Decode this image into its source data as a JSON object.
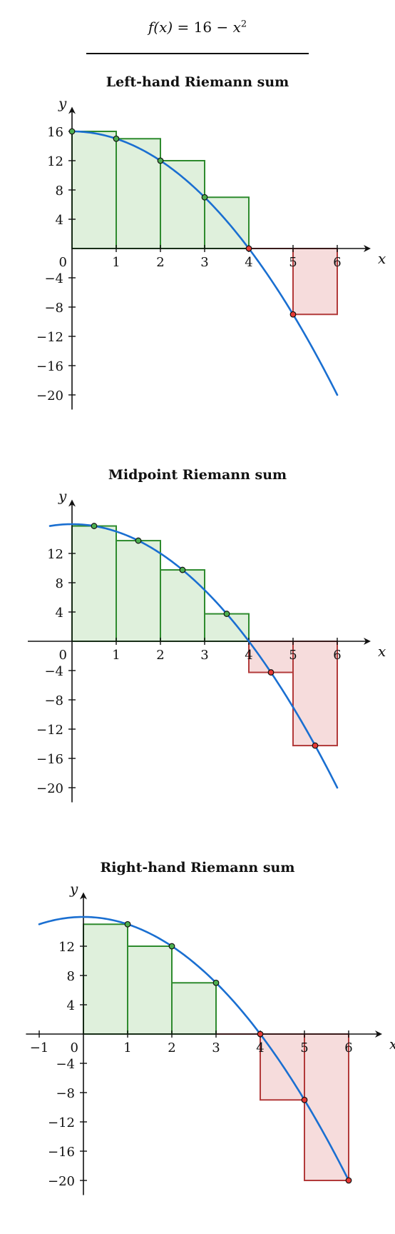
{
  "formula": {
    "lhs": "f(x)",
    "rhs_constant": "16",
    "rhs_var": "x",
    "rhs_exp": "2"
  },
  "colors": {
    "curve": "#1a6fd1",
    "curve_overlap": "#5b9bd5",
    "pos_fill": "#dff0dc",
    "pos_stroke": "#2e8b2e",
    "neg_fill": "#f6dcdc",
    "neg_stroke": "#b23a3a",
    "pos_point": "#4caf50",
    "neg_point": "#e53935",
    "axis": "#111111"
  },
  "chart_data": [
    {
      "type": "bar",
      "title": "Left-hand Riemann sum",
      "xlabel": "x",
      "ylabel": "y",
      "xlim": [
        0,
        6.5
      ],
      "ylim": [
        -22,
        18
      ],
      "x_ticks": [
        {
          "value": 0,
          "label": "0"
        },
        {
          "value": 1,
          "label": "1"
        },
        {
          "value": 2,
          "label": "2"
        },
        {
          "value": 3,
          "label": "3"
        },
        {
          "value": 4,
          "label": "4"
        },
        {
          "value": 5,
          "label": "5"
        },
        {
          "value": 6,
          "label": "6"
        }
      ],
      "y_ticks": [
        {
          "value": 16,
          "label": "16"
        },
        {
          "value": 12,
          "label": "12"
        },
        {
          "value": 8,
          "label": "8"
        },
        {
          "value": 4,
          "label": "4"
        },
        {
          "value": -4,
          "label": "−4"
        },
        {
          "value": -8,
          "label": "−8"
        },
        {
          "value": -12,
          "label": "−12"
        },
        {
          "value": -16,
          "label": "−16"
        },
        {
          "value": -20,
          "label": "−20"
        }
      ],
      "curve_x_range": [
        0,
        6
      ],
      "rectangles": [
        {
          "x0": 0,
          "x1": 1,
          "height": 16
        },
        {
          "x0": 1,
          "x1": 2,
          "height": 15
        },
        {
          "x0": 2,
          "x1": 3,
          "height": 12
        },
        {
          "x0": 3,
          "x1": 4,
          "height": 7
        },
        {
          "x0": 4,
          "x1": 5,
          "height": 0
        },
        {
          "x0": 5,
          "x1": 6,
          "height": -9
        }
      ],
      "sample_points": [
        {
          "x": 0,
          "y": 16
        },
        {
          "x": 1,
          "y": 15
        },
        {
          "x": 2,
          "y": 12
        },
        {
          "x": 3,
          "y": 7
        },
        {
          "x": 4,
          "y": 0
        },
        {
          "x": 5,
          "y": -9
        }
      ]
    },
    {
      "type": "bar",
      "title": "Midpoint Riemann sum",
      "xlabel": "x",
      "ylabel": "y",
      "xlim": [
        -1,
        6.5
      ],
      "ylim": [
        -22,
        18
      ],
      "x_ticks": [
        {
          "value": 0,
          "label": "0"
        },
        {
          "value": 1,
          "label": "1"
        },
        {
          "value": 2,
          "label": "2"
        },
        {
          "value": 3,
          "label": "3"
        },
        {
          "value": 4,
          "label": "4"
        },
        {
          "value": 5,
          "label": "5"
        },
        {
          "value": 6,
          "label": "6"
        }
      ],
      "y_ticks": [
        {
          "value": 12,
          "label": "12"
        },
        {
          "value": 8,
          "label": "8"
        },
        {
          "value": 4,
          "label": "4"
        },
        {
          "value": -4,
          "label": "−4"
        },
        {
          "value": -8,
          "label": "−8"
        },
        {
          "value": -12,
          "label": "−12"
        },
        {
          "value": -16,
          "label": "−16"
        },
        {
          "value": -20,
          "label": "−20"
        }
      ],
      "curve_x_range": [
        -0.5,
        6
      ],
      "rectangles": [
        {
          "x0": 0,
          "x1": 1,
          "height": 15.75
        },
        {
          "x0": 1,
          "x1": 2,
          "height": 13.75
        },
        {
          "x0": 2,
          "x1": 3,
          "height": 9.75
        },
        {
          "x0": 3,
          "x1": 4,
          "height": 3.75
        },
        {
          "x0": 4,
          "x1": 5,
          "height": -4.25
        },
        {
          "x0": 5,
          "x1": 6,
          "height": -14.25
        }
      ],
      "sample_points": [
        {
          "x": 0.5,
          "y": 15.75
        },
        {
          "x": 1.5,
          "y": 13.75
        },
        {
          "x": 2.5,
          "y": 9.75
        },
        {
          "x": 3.5,
          "y": 3.75
        },
        {
          "x": 4.5,
          "y": -4.25
        },
        {
          "x": 5.5,
          "y": -14.25
        }
      ]
    },
    {
      "type": "bar",
      "title": "Right-hand Riemann sum",
      "xlabel": "x",
      "ylabel": "y",
      "xlim": [
        -1.3,
        6.5
      ],
      "ylim": [
        -22,
        18
      ],
      "x_ticks": [
        {
          "value": -1,
          "label": "−1"
        },
        {
          "value": 0,
          "label": "0"
        },
        {
          "value": 1,
          "label": "1"
        },
        {
          "value": 2,
          "label": "2"
        },
        {
          "value": 3,
          "label": "3"
        },
        {
          "value": 4,
          "label": "4"
        },
        {
          "value": 5,
          "label": "5"
        },
        {
          "value": 6,
          "label": "6"
        }
      ],
      "y_ticks": [
        {
          "value": 12,
          "label": "12"
        },
        {
          "value": 8,
          "label": "8"
        },
        {
          "value": 4,
          "label": "4"
        },
        {
          "value": -4,
          "label": "−4"
        },
        {
          "value": -8,
          "label": "−8"
        },
        {
          "value": -12,
          "label": "−12"
        },
        {
          "value": -16,
          "label": "−16"
        },
        {
          "value": -20,
          "label": "−20"
        }
      ],
      "curve_x_range": [
        -1,
        6
      ],
      "rectangles": [
        {
          "x0": 0,
          "x1": 1,
          "height": 15
        },
        {
          "x0": 1,
          "x1": 2,
          "height": 12
        },
        {
          "x0": 2,
          "x1": 3,
          "height": 7
        },
        {
          "x0": 3,
          "x1": 4,
          "height": 0
        },
        {
          "x0": 4,
          "x1": 5,
          "height": -9
        },
        {
          "x0": 5,
          "x1": 6,
          "height": -20
        }
      ],
      "sample_points": [
        {
          "x": 1,
          "y": 15
        },
        {
          "x": 2,
          "y": 12
        },
        {
          "x": 3,
          "y": 7
        },
        {
          "x": 4,
          "y": 0
        },
        {
          "x": 5,
          "y": -9
        },
        {
          "x": 6,
          "y": -20
        }
      ]
    }
  ]
}
